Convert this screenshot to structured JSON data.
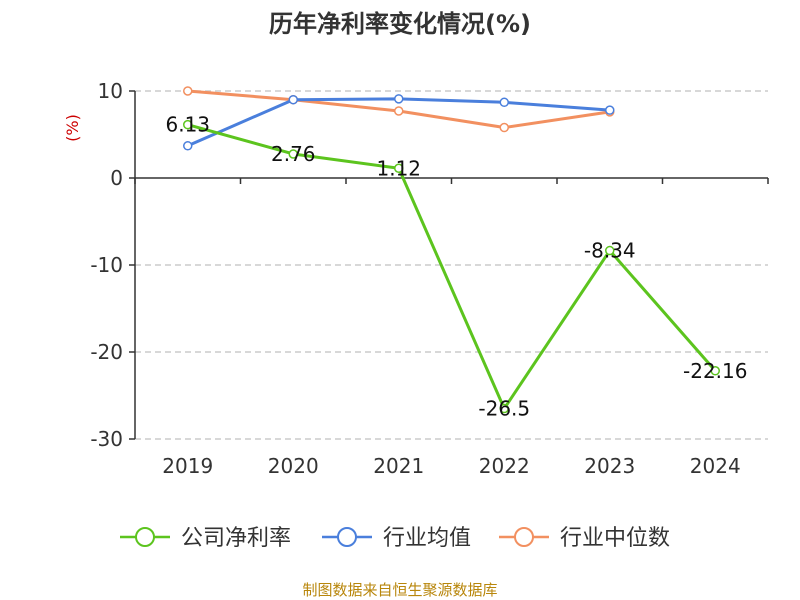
{
  "chart_data": {
    "type": "line",
    "title": "历年净利率变化情况(%)",
    "ylabel": "(%)",
    "xlabel": "",
    "categories": [
      "2019",
      "2020",
      "2021",
      "2022",
      "2023",
      "2024"
    ],
    "ylim": [
      -30,
      10
    ],
    "yticks": [
      10,
      0,
      -10,
      -20,
      -30
    ],
    "grid": true,
    "legend_position": "bottom",
    "series": [
      {
        "name": "公司净利率",
        "color": "#5cc41e",
        "values": [
          6.13,
          2.76,
          1.12,
          -26.5,
          -8.34,
          -22.16
        ],
        "labels": [
          "6.13",
          "2.76",
          "1.12",
          "-26.5",
          "-8.34",
          "-22.16"
        ]
      },
      {
        "name": "行业均值",
        "color": "#4a7fdc",
        "values": [
          3.7,
          9.0,
          9.1,
          8.7,
          7.8,
          null
        ]
      },
      {
        "name": "行业中位数",
        "color": "#f29060",
        "values": [
          10.0,
          9.0,
          7.7,
          5.8,
          7.6,
          null
        ]
      }
    ]
  },
  "source_text": "制图数据来自恒生聚源数据库"
}
